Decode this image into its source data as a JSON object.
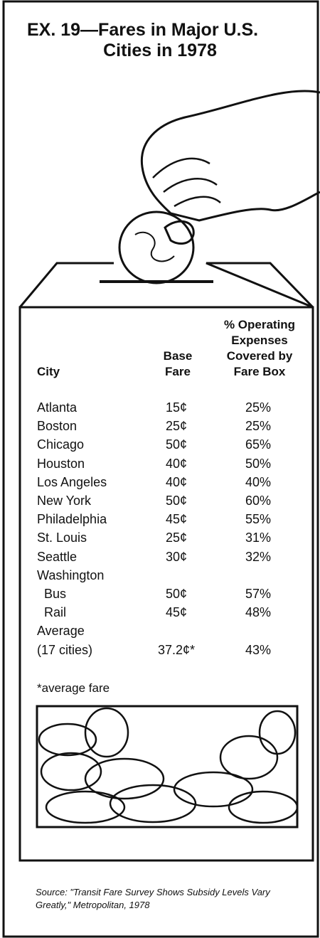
{
  "title": [
    "EX. 19—Fares in Major U.S.",
    "Cities in 1978"
  ],
  "table": {
    "headers": [
      [
        "City"
      ],
      [
        "Base",
        "Fare"
      ],
      [
        "% Operating",
        "Expenses",
        "Covered by",
        "Fare Box"
      ]
    ],
    "rows": [
      [
        "Atlanta",
        "15¢",
        "25%"
      ],
      [
        "Boston",
        "25¢",
        "25%"
      ],
      [
        "Chicago",
        "50¢",
        "65%"
      ],
      [
        "Houston",
        "40¢",
        "50%"
      ],
      [
        "Los Angeles",
        "40¢",
        "40%"
      ],
      [
        "New York",
        "50¢",
        "60%"
      ],
      [
        "Philadelphia",
        "45¢",
        "55%"
      ],
      [
        "St. Louis",
        "25¢",
        "31%"
      ],
      [
        "Seattle",
        "30¢",
        "32%"
      ],
      [
        "Washington"
      ],
      [
        "Bus",
        "50¢",
        "57%"
      ],
      [
        "Rail",
        "45¢",
        "48%"
      ],
      [
        "Average"
      ],
      [
        "(17 cities)",
        "37.2¢*",
        "43%"
      ]
    ]
  },
  "footnote": "*average fare",
  "source": "Source: \"Transit Fare Survey Shows Subsidy Levels Vary Greatly,\" Metropolitan, 1978"
}
